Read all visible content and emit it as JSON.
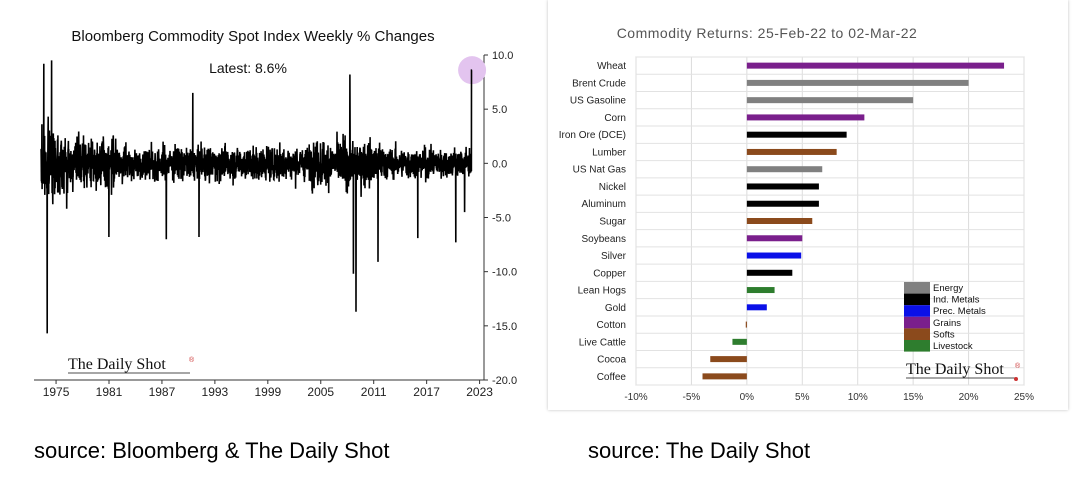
{
  "left_caption": "source: Bloomberg & The Daily Shot",
  "right_caption": "source: The Daily Shot",
  "brand": "The Daily Shot",
  "brand_mark": "®",
  "chart_data": [
    {
      "type": "line",
      "title": "Bloomberg Commodity Spot Index Weekly % Changes",
      "annotation": "Latest:  8.6%",
      "latest_value": 8.6,
      "x_range": [
        1972.5,
        2023.5
      ],
      "ylim": [
        -20,
        10
      ],
      "y_ticks": [
        10,
        5,
        0,
        -5,
        -10,
        -15,
        -20
      ],
      "y_tick_labels": [
        "10.0",
        "5.0",
        "0.0",
        "-5.0",
        "-10.0",
        "-15.0",
        "-20.0"
      ],
      "x_ticks": [
        "1975",
        "1981",
        "1987",
        "1993",
        "1999",
        "2005",
        "2011",
        "2017",
        "2023"
      ],
      "y_axis_position": "right",
      "highlight_color": "#e3c4ef",
      "series_color": "#000000",
      "extremes": [
        {
          "x": 1973.6,
          "y": 9.2
        },
        {
          "x": 1974.0,
          "y": -15.7
        },
        {
          "x": 1974.5,
          "y": 9.5
        },
        {
          "x": 1976.2,
          "y": -4.2
        },
        {
          "x": 1981.0,
          "y": -6.8
        },
        {
          "x": 1987.5,
          "y": -7.0
        },
        {
          "x": 1990.5,
          "y": 6.5
        },
        {
          "x": 1991.2,
          "y": -6.8
        },
        {
          "x": 2008.3,
          "y": 8.2
        },
        {
          "x": 2008.7,
          "y": -10.2
        },
        {
          "x": 2009.0,
          "y": -13.7
        },
        {
          "x": 2011.5,
          "y": -9.1
        },
        {
          "x": 2016.0,
          "y": -6.9
        },
        {
          "x": 2020.3,
          "y": -7.3
        },
        {
          "x": 2021.3,
          "y": -4.5
        },
        {
          "x": 2022.15,
          "y": 8.6
        }
      ]
    },
    {
      "type": "bar",
      "orientation": "horizontal",
      "title": "Commodity Returns: 25-Feb-22 to 02-Mar-22",
      "xlim": [
        -10,
        25
      ],
      "x_ticks": [
        -10,
        -5,
        0,
        5,
        10,
        15,
        20,
        25
      ],
      "x_tick_labels": [
        "-10%",
        "-5%",
        "0%",
        "5%",
        "10%",
        "15%",
        "20%",
        "25%"
      ],
      "grid": true,
      "legend_position": "bottom-right",
      "groups": [
        {
          "name": "Energy",
          "color": "#808080"
        },
        {
          "name": "Ind. Metals",
          "color": "#000000"
        },
        {
          "name": "Prec. Metals",
          "color": "#0a10e8"
        },
        {
          "name": "Grains",
          "color": "#7a1f8c"
        },
        {
          "name": "Softs",
          "color": "#8b4a1c"
        },
        {
          "name": "Livestock",
          "color": "#2e7d2e"
        }
      ],
      "categories": [
        "Wheat",
        "Brent Crude",
        "US Gasoline",
        "Corn",
        "Iron Ore (DCE)",
        "Lumber",
        "US Nat Gas",
        "Nickel",
        "Aluminum",
        "Sugar",
        "Soybeans",
        "Silver",
        "Copper",
        "Lean Hogs",
        "Gold",
        "Cotton",
        "Live Cattle",
        "Cocoa",
        "Coffee"
      ],
      "values": [
        23.2,
        20.0,
        15.0,
        10.6,
        9.0,
        8.1,
        6.8,
        6.5,
        6.5,
        5.9,
        5.0,
        4.9,
        4.1,
        2.5,
        1.8,
        -0.1,
        -1.3,
        -3.3,
        -4.0
      ],
      "bar_groups": [
        "Grains",
        "Energy",
        "Energy",
        "Grains",
        "Ind. Metals",
        "Softs",
        "Energy",
        "Ind. Metals",
        "Ind. Metals",
        "Softs",
        "Grains",
        "Prec. Metals",
        "Ind. Metals",
        "Livestock",
        "Prec. Metals",
        "Softs",
        "Livestock",
        "Softs",
        "Softs"
      ]
    }
  ]
}
